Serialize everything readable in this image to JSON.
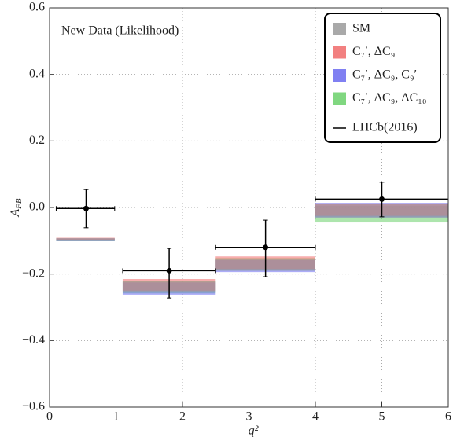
{
  "chart_data": {
    "type": "band",
    "annotation": "New Data (Likelihood)",
    "xlabel": "q²",
    "ylabel": {
      "main": "A",
      "sub": "FB"
    },
    "xlim": [
      0,
      6
    ],
    "ylim": [
      -0.6,
      0.6
    ],
    "xticks": [
      0,
      1,
      2,
      3,
      4,
      5,
      6
    ],
    "yticks": [
      {
        "value": -0.6,
        "label": "−0.6"
      },
      {
        "value": -0.4,
        "label": "−0.4"
      },
      {
        "value": -0.2,
        "label": "−0.2"
      },
      {
        "value": 0,
        "label": "0.0"
      },
      0.2,
      0.4,
      0.6
    ],
    "grid": true,
    "legend_position": "upper right",
    "bins": [
      [
        0.1,
        0.98
      ],
      [
        1.1,
        2.5
      ],
      [
        2.5,
        4
      ],
      [
        4,
        6
      ]
    ],
    "series": [
      {
        "name": "SM",
        "color": "#9a9a9a",
        "low": [
          -0.098,
          -0.255,
          -0.19,
          -0.03
        ],
        "high": [
          -0.092,
          -0.22,
          -0.155,
          0.01
        ]
      },
      {
        "name": "C₇′, ΔC₉",
        "color": "#f06a6a",
        "low": [
          -0.097,
          -0.25,
          -0.185,
          -0.025
        ],
        "high": [
          -0.091,
          -0.215,
          -0.147,
          0.012
        ]
      },
      {
        "name": "C₇′, ΔC₉, C₉′",
        "color": "#6a6af0",
        "low": [
          -0.099,
          -0.262,
          -0.194,
          -0.03
        ],
        "high": [
          -0.093,
          -0.225,
          -0.158,
          0.014
        ]
      },
      {
        "name": "C₇′, ΔC₉, ΔC₁₀",
        "color": "#6ad06a",
        "low": [
          -0.1,
          -0.258,
          -0.19,
          -0.045
        ],
        "high": [
          -0.094,
          -0.22,
          -0.152,
          0.005
        ]
      }
    ],
    "measurement": {
      "name": "LHCb(2016)",
      "color": "#000000",
      "x": [
        0.55,
        1.8,
        3.25,
        5
      ],
      "values": [
        -0.003,
        -0.19,
        -0.12,
        0.025
      ],
      "lower": [
        -0.061,
        -0.272,
        -0.208,
        -0.028
      ],
      "upper": [
        0.054,
        -0.123,
        -0.038,
        0.076
      ],
      "x_low": [
        0.1,
        1.1,
        2.5,
        4
      ],
      "x_high": [
        0.98,
        2.5,
        4,
        6
      ]
    }
  }
}
